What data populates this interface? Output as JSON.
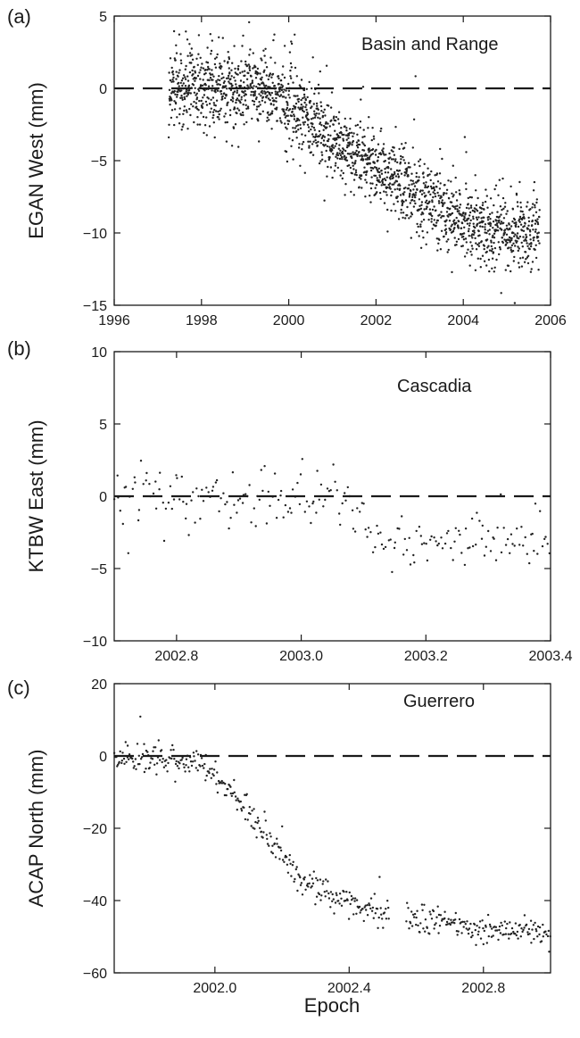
{
  "figure": {
    "xlabel": "Epoch",
    "colors": {
      "ink": "#1a1a1a",
      "points": "#222222",
      "axis": "#1a1a1a"
    }
  },
  "chart_data": [
    {
      "panel_label": "(a)",
      "type": "scatter",
      "annotation": "Basin and Range",
      "ylabel": "EGAN West (mm)",
      "xlim": [
        1996,
        2006
      ],
      "ylim": [
        -15,
        5
      ],
      "x_ticks": [
        1996,
        1998,
        2000,
        2002,
        2004,
        2006
      ],
      "x_tick_labels": [
        "1996",
        "1998",
        "2000",
        "2002",
        "2004",
        "2006"
      ],
      "y_ticks": [
        -15,
        -10,
        -5,
        0,
        5
      ],
      "y_tick_labels": [
        "−15",
        "−10",
        "−5",
        "0",
        "5"
      ],
      "reference_line": {
        "y": 0,
        "style": "dashed"
      },
      "x_range_data": [
        1997.25,
        2005.75
      ],
      "trend": [
        [
          1997.25,
          0.2
        ],
        [
          1999.5,
          0
        ],
        [
          2000.0,
          -1.2
        ],
        [
          2001.0,
          -3.5
        ],
        [
          2002.0,
          -5.5
        ],
        [
          2003.0,
          -7.5
        ],
        [
          2004.0,
          -9.2
        ],
        [
          2004.6,
          -10.0
        ],
        [
          2005.75,
          -9.8
        ]
      ],
      "approx_point_count": 2000,
      "scatter_sd_mm": 1.3
    },
    {
      "panel_label": "(b)",
      "type": "scatter",
      "annotation": "Cascadia",
      "ylabel": "KTBW East (mm)",
      "xlim": [
        2002.7,
        2003.4
      ],
      "ylim": [
        -10,
        10
      ],
      "x_ticks": [
        2002.8,
        2003.0,
        2003.2,
        2003.4
      ],
      "x_tick_labels": [
        "2002.8",
        "2003.0",
        "2003.2",
        "2003.4"
      ],
      "y_ticks": [
        -10,
        -5,
        0,
        5,
        10
      ],
      "y_tick_labels": [
        "−10",
        "−5",
        "0",
        "5",
        "10"
      ],
      "reference_line": {
        "y": 0,
        "style": "dashed"
      },
      "x_range_data": [
        2002.7,
        2003.4
      ],
      "trend": [
        [
          2002.7,
          0.1
        ],
        [
          2003.07,
          -0.1
        ],
        [
          2003.12,
          -3.0
        ],
        [
          2003.2,
          -3.3
        ],
        [
          2003.4,
          -3.0
        ]
      ],
      "approx_point_count": 230,
      "scatter_sd_mm": 1.0
    },
    {
      "panel_label": "(c)",
      "type": "scatter",
      "annotation": "Guerrero",
      "ylabel": "ACAP North (mm)",
      "xlim": [
        2001.7,
        2003.0
      ],
      "ylim": [
        -60,
        20
      ],
      "x_ticks": [
        2002.0,
        2002.4,
        2002.8
      ],
      "x_tick_labels": [
        "2002.0",
        "2002.4",
        "2002.8"
      ],
      "y_ticks": [
        -60,
        -40,
        -20,
        0,
        20
      ],
      "y_tick_labels": [
        "−60",
        "−40",
        "−20",
        "0",
        "20"
      ],
      "reference_line": {
        "y": 0,
        "style": "dashed"
      },
      "x_range_data": [
        2001.7,
        2003.0
      ],
      "trend": [
        [
          2001.7,
          0
        ],
        [
          2001.95,
          -2
        ],
        [
          2002.05,
          -10
        ],
        [
          2002.15,
          -22
        ],
        [
          2002.25,
          -34
        ],
        [
          2002.35,
          -38
        ],
        [
          2002.5,
          -44
        ],
        [
          2002.6,
          -45
        ],
        [
          2002.8,
          -48
        ],
        [
          2003.0,
          -49
        ]
      ],
      "gap": [
        2002.52,
        2002.57
      ],
      "approx_point_count": 520,
      "scatter_sd_mm": 2.0
    }
  ]
}
